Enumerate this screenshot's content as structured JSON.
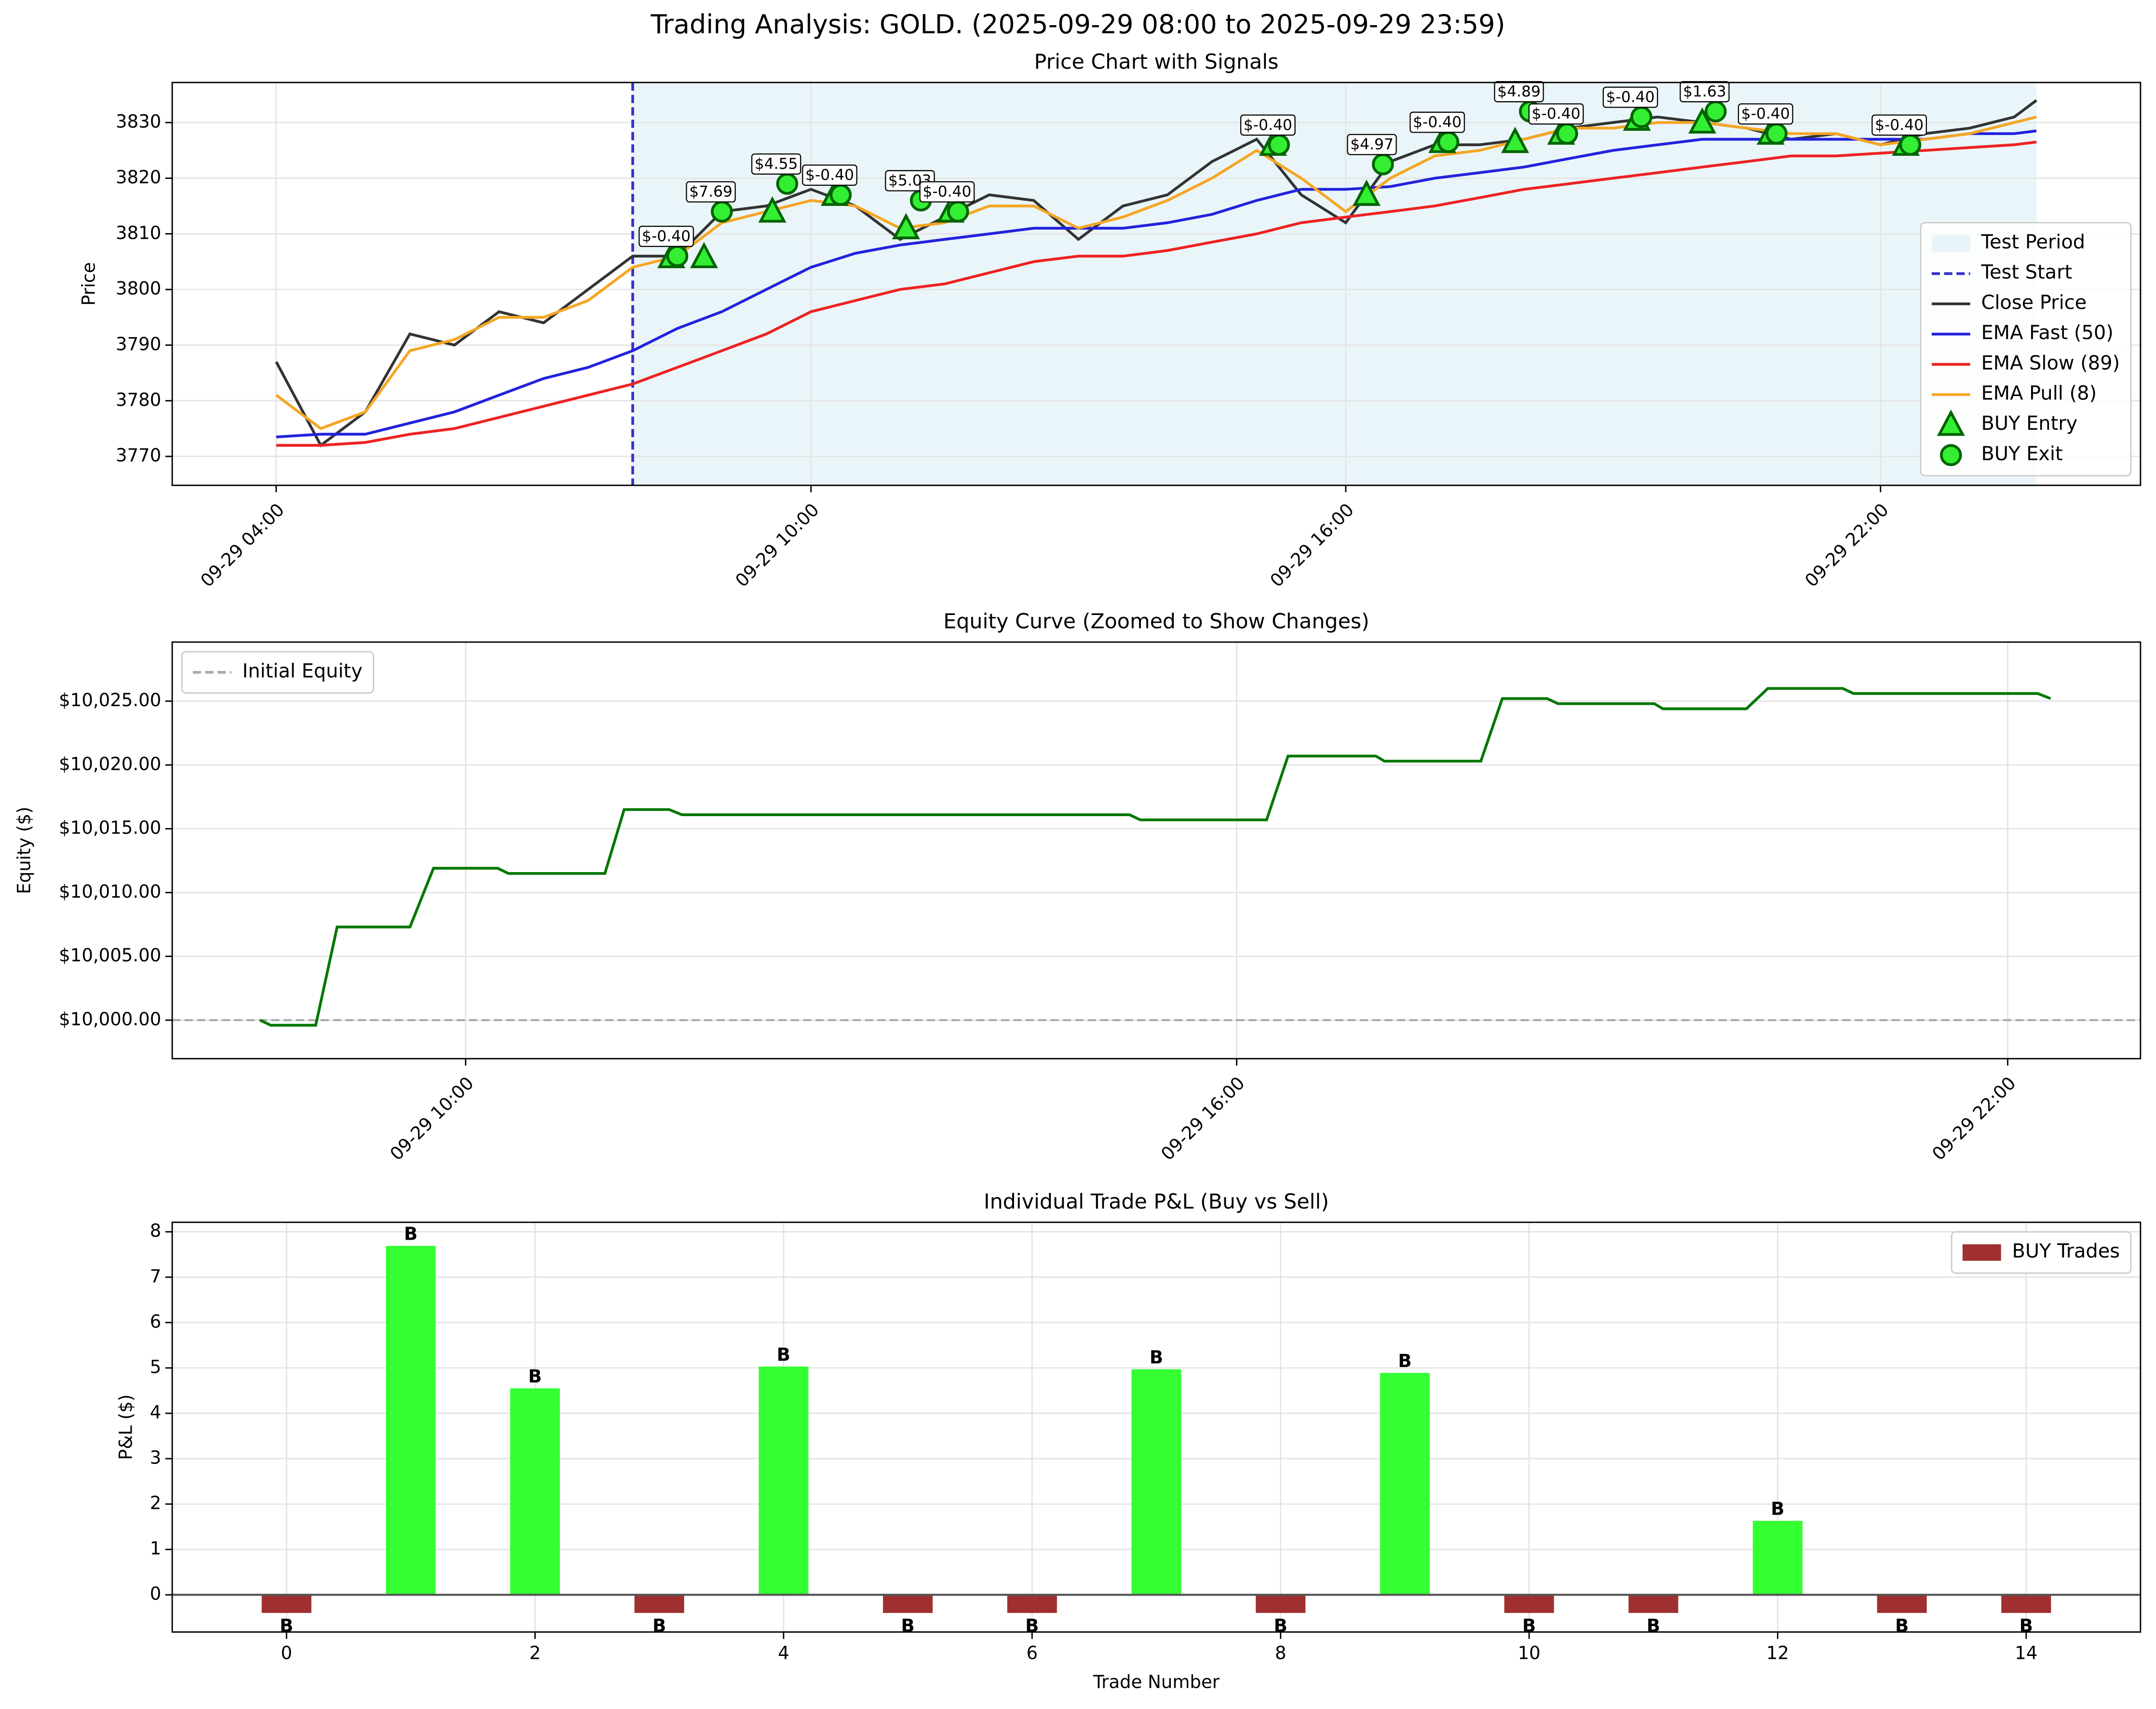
{
  "title": "Trading Analysis: GOLD. (2025-09-29 08:00 to 2025-09-29 23:59)",
  "chart_data": [
    {
      "type": "line",
      "title": "Price Chart with Signals",
      "ylabel": "Price",
      "x": [
        "09-29 04:00",
        "09-29 04:30",
        "09-29 05:00",
        "09-29 05:30",
        "09-29 06:00",
        "09-29 06:30",
        "09-29 07:00",
        "09-29 07:30",
        "09-29 08:00",
        "09-29 08:30",
        "09-29 09:00",
        "09-29 09:30",
        "09-29 10:00",
        "09-29 10:30",
        "09-29 11:00",
        "09-29 11:30",
        "09-29 12:00",
        "09-29 12:30",
        "09-29 13:00",
        "09-29 13:30",
        "09-29 14:00",
        "09-29 14:30",
        "09-29 15:00",
        "09-29 15:30",
        "09-29 16:00",
        "09-29 16:30",
        "09-29 17:00",
        "09-29 17:30",
        "09-29 18:00",
        "09-29 18:30",
        "09-29 19:00",
        "09-29 19:30",
        "09-29 20:00",
        "09-29 20:30",
        "09-29 21:00",
        "09-29 21:30",
        "09-29 22:00",
        "09-29 22:30",
        "09-29 23:00",
        "09-29 23:30",
        "09-29 23:45"
      ],
      "xlim": [
        "09-29 02:50",
        "09-30 00:55"
      ],
      "xticks": [
        "09-29 04:00",
        "09-29 10:00",
        "09-29 16:00",
        "09-29 22:00"
      ],
      "ylim": [
        3764.8,
        3837.2
      ],
      "yticks": [
        3770,
        3780,
        3790,
        3800,
        3810,
        3820,
        3830
      ],
      "grid": true,
      "legend": "lower right",
      "test_period": {
        "name": "Test Period",
        "color": "#add8e6",
        "range": [
          "09-29 08:00",
          "09-29 23:45"
        ]
      },
      "test_start": {
        "name": "Test Start",
        "color": "#3333cc",
        "x": "09-29 08:00"
      },
      "series": [
        {
          "name": "Close Price",
          "color": "#333333",
          "values": [
            3787,
            3772,
            3778,
            3792,
            3790,
            3796,
            3794,
            3800,
            3806,
            3806,
            3814,
            3815,
            3818,
            3815,
            3809,
            3813,
            3817,
            3816,
            3809,
            3815,
            3817,
            3823,
            3827,
            3817,
            3812,
            3823,
            3826,
            3826,
            3827,
            3829,
            3830,
            3831,
            3830,
            3829,
            3827,
            3828,
            3826,
            3828,
            3829,
            3831,
            3834
          ]
        },
        {
          "name": "EMA Fast (50)",
          "color": "#2222dd",
          "values": [
            3773.5,
            3774,
            3774,
            3776,
            3778,
            3781,
            3784,
            3786,
            3789,
            3793,
            3796,
            3800,
            3804,
            3806.5,
            3808,
            3809,
            3810,
            3811,
            3811,
            3811,
            3812,
            3813.5,
            3816,
            3818,
            3818,
            3818.5,
            3820,
            3821,
            3822,
            3823.5,
            3825,
            3826,
            3827,
            3827,
            3827,
            3827,
            3827,
            3827,
            3828,
            3828,
            3828.5
          ]
        },
        {
          "name": "EMA Slow (89)",
          "color": "#ee2222",
          "values": [
            3772,
            3772,
            3772.5,
            3774,
            3775,
            3777,
            3779,
            3781,
            3783,
            3786,
            3789,
            3792,
            3796,
            3798,
            3800,
            3801,
            3803,
            3805,
            3806,
            3806,
            3807,
            3808.5,
            3810,
            3812,
            3813,
            3814,
            3815,
            3816.5,
            3818,
            3819,
            3820,
            3821,
            3822,
            3823,
            3824,
            3824,
            3824.5,
            3825,
            3825.5,
            3826,
            3826.5
          ]
        },
        {
          "name": "EMA Pull (8)",
          "color": "#f5a623",
          "values": [
            3781,
            3775,
            3778,
            3789,
            3791,
            3795,
            3795,
            3798,
            3804,
            3806,
            3812,
            3814,
            3816,
            3815,
            3811,
            3812,
            3815,
            3815,
            3811,
            3813,
            3816,
            3820,
            3825,
            3820,
            3814,
            3820,
            3824,
            3825,
            3827,
            3829,
            3829,
            3830,
            3830,
            3829,
            3828,
            3828,
            3826,
            3827,
            3828,
            3830,
            3831
          ]
        }
      ],
      "signals": [
        {
          "name": "BUY Entry",
          "marker": "triangle",
          "color": "#33ee33",
          "edge_color": "#006400",
          "x": [
            "09-29 08:26",
            "09-29 08:48",
            "09-29 09:34",
            "09-29 10:16",
            "09-29 11:04",
            "09-29 11:34",
            "09-29 15:11",
            "09-29 16:14",
            "09-29 17:05",
            "09-29 17:54",
            "09-29 18:25",
            "09-29 19:16",
            "09-29 20:00",
            "09-29 20:46",
            "09-29 22:17"
          ],
          "values": [
            3805.8,
            3805.8,
            3814,
            3817,
            3811,
            3814,
            3826,
            3817,
            3826.5,
            3826.5,
            3828,
            3830.5,
            3830,
            3828,
            3826
          ]
        },
        {
          "name": "BUY Exit",
          "marker": "circle",
          "color": "#33ee33",
          "edge_color": "#006400",
          "x": [
            "09-29 08:30",
            "09-29 09:00",
            "09-29 09:44",
            "09-29 10:20",
            "09-29 11:14",
            "09-29 11:39",
            "09-29 15:15",
            "09-29 16:25",
            "09-29 17:09",
            "09-29 18:04",
            "09-29 18:29",
            "09-29 19:19",
            "09-29 20:09",
            "09-29 20:50",
            "09-29 22:20"
          ],
          "values": [
            3806,
            3814,
            3819,
            3817,
            3816,
            3814,
            3826,
            3822.5,
            3826.5,
            3832,
            3828,
            3831,
            3832,
            3828,
            3826
          ],
          "labels": [
            "$-0.40",
            "$7.69",
            "$4.55",
            "$-0.40",
            "$5.03",
            "$-0.40",
            "$-0.40",
            "$4.97",
            "$-0.40",
            "$4.89",
            "$-0.40",
            "$-0.40",
            "$1.63",
            "$-0.40",
            "$-0.40"
          ]
        }
      ]
    },
    {
      "type": "line",
      "title": "Equity Curve (Zoomed to Show Changes)",
      "ylabel": "Equity ($)",
      "color": "#007700",
      "x": [
        "09-29 08:24",
        "09-29 08:29",
        "09-29 08:50",
        "09-29 09:00",
        "09-29 09:34",
        "09-29 09:45",
        "09-29 10:15",
        "09-29 10:20",
        "09-29 11:05",
        "09-29 11:14",
        "09-29 11:35",
        "09-29 11:41",
        "09-29 15:10",
        "09-29 15:15",
        "09-29 16:14",
        "09-29 16:24",
        "09-29 17:05",
        "09-29 17:09",
        "09-29 17:54",
        "09-29 18:04",
        "09-29 18:25",
        "09-29 18:30",
        "09-29 19:15",
        "09-29 19:19",
        "09-29 19:58",
        "09-29 20:08",
        "09-29 20:43",
        "09-29 20:48",
        "09-29 22:14",
        "09-29 22:20"
      ],
      "values": [
        10000,
        9999.6,
        9999.6,
        10007.3,
        10007.3,
        10011.9,
        10011.9,
        10011.5,
        10011.5,
        10016.5,
        10016.5,
        10016.1,
        10016.1,
        10015.7,
        10015.7,
        10020.7,
        10020.7,
        10020.3,
        10020.3,
        10025.2,
        10025.2,
        10024.8,
        10024.8,
        10024.4,
        10024.4,
        10026.0,
        10026.0,
        10025.6,
        10025.6,
        10025.2
      ],
      "xlim": [
        "09-29 07:43",
        "09-29 23:02"
      ],
      "xticks": [
        "09-29 10:00",
        "09-29 16:00",
        "09-29 22:00"
      ],
      "ylim": [
        9996.98,
        10029.63
      ],
      "yticks": [
        {
          "value": 10000,
          "label": "$10,000.00"
        },
        {
          "value": 10005,
          "label": "$10,005.00"
        },
        {
          "value": 10010,
          "label": "$10,010.00"
        },
        {
          "value": 10015,
          "label": "$10,015.00"
        },
        {
          "value": 10020,
          "label": "$10,020.00"
        },
        {
          "value": 10025,
          "label": "$10,025.00"
        }
      ],
      "grid": true,
      "legend": "upper left",
      "reference": {
        "name": "Initial Equity",
        "value": 10000,
        "color": "#aaaaaa"
      }
    },
    {
      "type": "bar",
      "title": "Individual Trade P&L (Buy vs Sell)",
      "xlabel": "Trade Number",
      "ylabel": "P&L ($)",
      "x": [
        0,
        1,
        2,
        3,
        4,
        5,
        6,
        7,
        8,
        9,
        10,
        11,
        12,
        13,
        14
      ],
      "series": [
        {
          "name": "BUY Trades",
          "color": "#a03030",
          "values": [
            -0.4,
            7.69,
            4.55,
            -0.4,
            5.03,
            -0.4,
            -0.4,
            4.97,
            -0.4,
            4.89,
            -0.4,
            -0.4,
            1.63,
            -0.4,
            -0.4
          ]
        }
      ],
      "positive_color": "#33ff33",
      "bar_labels": [
        "B",
        "B",
        "B",
        "B",
        "B",
        "B",
        "B",
        "B",
        "B",
        "B",
        "B",
        "B",
        "B",
        "B",
        "B"
      ],
      "xlim": [
        -0.92,
        14.92
      ],
      "xticks": [
        0,
        2,
        4,
        6,
        8,
        10,
        12,
        14
      ],
      "ylim": [
        -0.82,
        8.21
      ],
      "yticks": [
        0,
        1,
        2,
        3,
        4,
        5,
        6,
        7,
        8
      ],
      "grid": true,
      "legend": "upper right"
    }
  ]
}
